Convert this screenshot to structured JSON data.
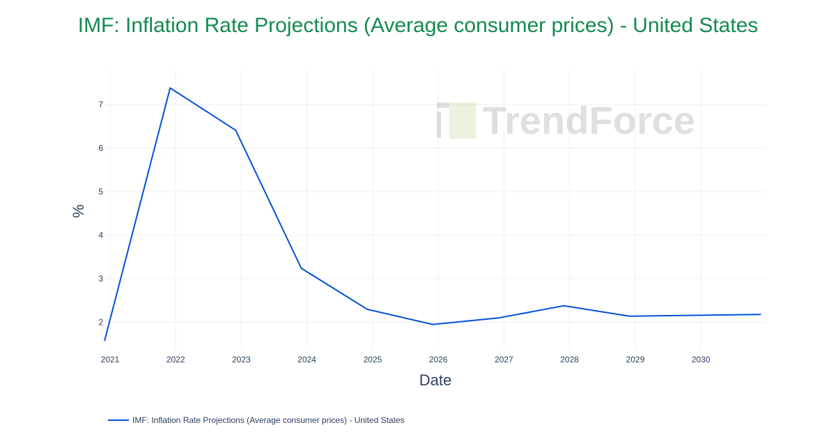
{
  "chart_data": {
    "type": "line",
    "title": "IMF: Inflation Rate Projections (Average consumer prices) - United States",
    "xlabel": "Date",
    "ylabel": "%",
    "x_ticks": [
      "2021",
      "2022",
      "2023",
      "2024",
      "2025",
      "2026",
      "2027",
      "2028",
      "2029",
      "2030"
    ],
    "y_ticks": [
      2,
      3,
      4,
      5,
      6,
      7
    ],
    "xlim": [
      "2020-12-01",
      "2030-12-31"
    ],
    "ylim": [
      1.4,
      7.8
    ],
    "grid": true,
    "legend_placement": "bottom-left",
    "series": [
      {
        "name": "IMF: Inflation Rate Projections (Average consumer prices) - United States",
        "color": "#0050d8",
        "x": [
          "2020-12-01",
          "2021-12-01",
          "2022-12-01",
          "2023-12-01",
          "2024-12-01",
          "2025-12-01",
          "2026-12-01",
          "2027-12-01",
          "2028-12-01",
          "2029-12-01",
          "2030-12-01"
        ],
        "y": [
          1.57,
          7.38,
          6.41,
          3.24,
          2.3,
          1.95,
          2.1,
          2.38,
          2.14,
          2.16,
          2.18
        ]
      }
    ]
  },
  "watermark": "TrendForce"
}
